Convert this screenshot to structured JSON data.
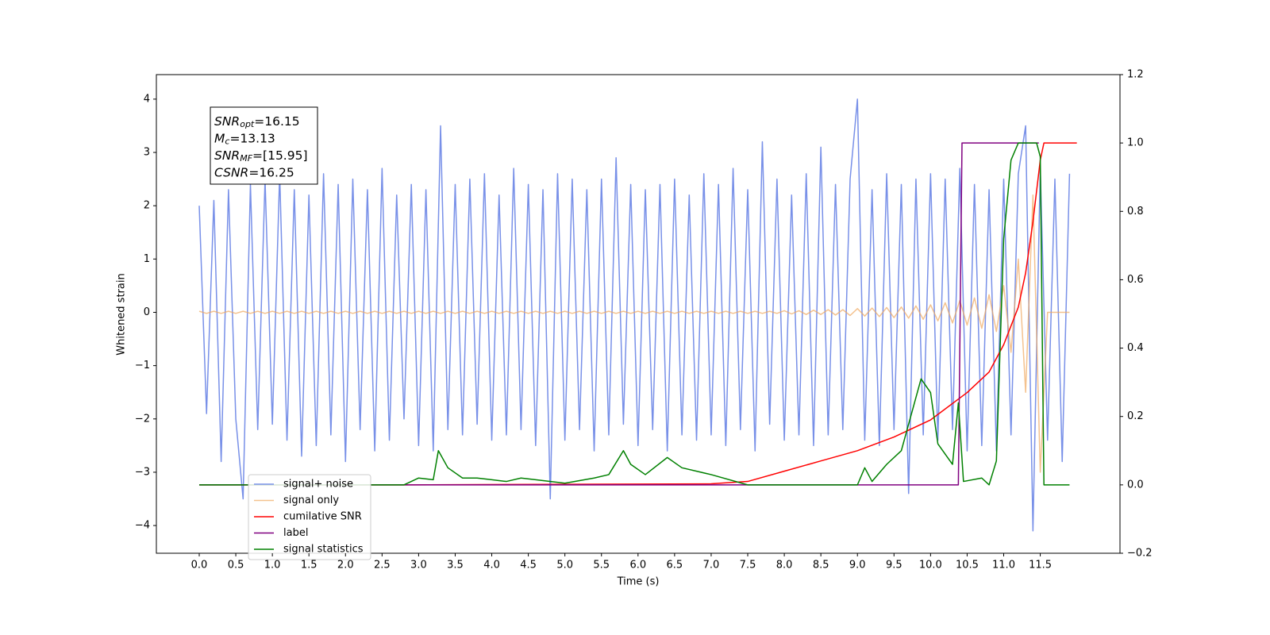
{
  "chart_data": {
    "type": "line",
    "xlabel": "Time (s)",
    "ylabel": "Whitened strain",
    "xlim": [
      -0.586,
      12.59
    ],
    "ylim": [
      -4.52,
      4.46
    ],
    "y2lim": [
      -0.2,
      1.2
    ],
    "xticks": [
      {
        "value": 0,
        "label": "0.0"
      },
      0.5,
      {
        "value": 1,
        "label": "1.0"
      },
      1.5,
      {
        "value": 2,
        "label": "2.0"
      },
      2.5,
      {
        "value": 3,
        "label": "3.0"
      },
      3.5,
      {
        "value": 4,
        "label": "4.0"
      },
      4.5,
      {
        "value": 5,
        "label": "5.0"
      },
      5.5,
      {
        "value": 6,
        "label": "6.0"
      },
      6.5,
      {
        "value": 7,
        "label": "7.0"
      },
      7.5,
      {
        "value": 8,
        "label": "8.0"
      },
      8.5,
      {
        "value": 9,
        "label": "9.0"
      },
      9.5,
      {
        "value": 10,
        "label": "10.0"
      },
      10.5,
      {
        "value": 11,
        "label": "11.0"
      },
      11.5
    ],
    "yticks": [
      {
        "value": -4,
        "label": "−4"
      },
      {
        "value": -3,
        "label": "−3"
      },
      {
        "value": -2,
        "label": "−2"
      },
      {
        "value": -1,
        "label": "−1"
      },
      0,
      1,
      2,
      3,
      4
    ],
    "y2ticks": [
      {
        "value": -0.2,
        "label": "−0.2"
      },
      {
        "value": 0,
        "label": "0.0"
      },
      0.2,
      0.4,
      0.6,
      0.8,
      {
        "value": 1,
        "label": "1.0"
      },
      1.2
    ],
    "annotation": [
      {
        "name": "SNR",
        "sub": "opt",
        "text": "=16.15"
      },
      {
        "name": "M",
        "sub": "c",
        "text": "=13.13"
      },
      {
        "name": "SNR",
        "sub": "MF",
        "text": "=[15.95]"
      },
      {
        "name": "CSNR",
        "sub": null,
        "text": "=16.25"
      }
    ],
    "series": [
      {
        "name": "signal+ noise",
        "color": "#7890e8",
        "x": [
          0.0,
          0.1,
          0.2,
          0.3,
          0.4,
          0.5,
          0.6,
          0.7,
          0.8,
          0.9,
          1.0,
          1.1,
          1.2,
          1.3,
          1.4,
          1.5,
          1.6,
          1.7,
          1.8,
          1.9,
          2.0,
          2.1,
          2.2,
          2.3,
          2.4,
          2.5,
          2.6,
          2.7,
          2.8,
          2.9,
          3.0,
          3.1,
          3.2,
          3.3,
          3.4,
          3.5,
          3.6,
          3.7,
          3.8,
          3.9,
          4.0,
          4.1,
          4.2,
          4.3,
          4.4,
          4.5,
          4.6,
          4.7,
          4.8,
          4.9,
          5.0,
          5.1,
          5.2,
          5.3,
          5.4,
          5.5,
          5.6,
          5.7,
          5.8,
          5.9,
          6.0,
          6.1,
          6.2,
          6.3,
          6.4,
          6.5,
          6.6,
          6.7,
          6.8,
          6.9,
          7.0,
          7.1,
          7.2,
          7.3,
          7.4,
          7.5,
          7.6,
          7.7,
          7.8,
          7.9,
          8.0,
          8.1,
          8.2,
          8.3,
          8.4,
          8.5,
          8.6,
          8.7,
          8.8,
          8.9,
          9.0,
          9.1,
          9.2,
          9.3,
          9.4,
          9.5,
          9.6,
          9.7,
          9.8,
          9.9,
          10.0,
          10.1,
          10.2,
          10.3,
          10.4,
          10.5,
          10.6,
          10.7,
          10.8,
          10.9,
          11.0,
          11.1,
          11.2,
          11.3,
          11.4,
          11.5,
          11.6,
          11.7,
          11.8,
          11.9
        ],
        "values": [
          2.0,
          -1.9,
          2.1,
          -2.8,
          2.3,
          -2.0,
          -3.5,
          2.4,
          -2.2,
          2.5,
          -2.1,
          2.6,
          -2.4,
          2.3,
          -2.7,
          2.2,
          -2.5,
          2.6,
          -2.3,
          2.4,
          -2.8,
          2.5,
          -2.2,
          2.3,
          -2.6,
          2.7,
          -2.4,
          2.2,
          -2.0,
          2.4,
          -2.5,
          2.3,
          -2.6,
          3.5,
          -2.2,
          2.4,
          -2.3,
          2.5,
          -2.1,
          2.6,
          -2.4,
          2.2,
          -2.3,
          2.7,
          -2.2,
          2.4,
          -2.5,
          2.3,
          -3.5,
          2.6,
          -2.4,
          2.5,
          -2.2,
          2.3,
          -2.6,
          2.5,
          -2.3,
          2.9,
          -2.1,
          2.4,
          -2.5,
          2.3,
          -2.2,
          2.4,
          -2.6,
          2.5,
          -2.3,
          2.2,
          -2.4,
          2.6,
          -2.3,
          2.4,
          -2.5,
          2.7,
          -2.2,
          2.3,
          -2.6,
          3.2,
          -2.1,
          2.5,
          -2.4,
          2.2,
          -2.3,
          2.6,
          -2.5,
          3.1,
          -2.3,
          2.4,
          -2.2,
          2.5,
          4.0,
          -2.4,
          2.3,
          -2.5,
          2.6,
          -2.2,
          2.4,
          -3.4,
          2.5,
          -2.3,
          2.6,
          -2.4,
          2.5,
          -2.2,
          2.7,
          -2.6,
          2.4,
          -2.5,
          2.3,
          -2.6,
          2.5,
          -2.3,
          2.6,
          3.5,
          -4.1,
          2.7,
          -2.4,
          2.5,
          -2.8,
          2.6
        ]
      },
      {
        "name": "signal only",
        "color": "#f0a860",
        "x": [
          0.0,
          0.1,
          0.2,
          0.3,
          0.4,
          0.5,
          0.6,
          0.7,
          0.8,
          0.9,
          1.0,
          1.1,
          1.2,
          1.3,
          1.4,
          1.5,
          1.6,
          1.7,
          1.8,
          1.9,
          2.0,
          2.1,
          2.2,
          2.3,
          2.4,
          2.5,
          2.6,
          2.7,
          2.8,
          2.9,
          3.0,
          3.1,
          3.2,
          3.3,
          3.4,
          3.5,
          3.6,
          3.7,
          3.8,
          3.9,
          4.0,
          4.1,
          4.2,
          4.3,
          4.4,
          4.5,
          4.6,
          4.7,
          4.8,
          4.9,
          5.0,
          5.1,
          5.2,
          5.3,
          5.4,
          5.5,
          5.6,
          5.7,
          5.8,
          5.9,
          6.0,
          6.1,
          6.2,
          6.3,
          6.4,
          6.5,
          6.6,
          6.7,
          6.8,
          6.9,
          7.0,
          7.1,
          7.2,
          7.3,
          7.4,
          7.5,
          7.6,
          7.7,
          7.8,
          7.9,
          8.0,
          8.1,
          8.2,
          8.3,
          8.4,
          8.5,
          8.6,
          8.7,
          8.8,
          8.9,
          9.0,
          9.1,
          9.2,
          9.3,
          9.4,
          9.5,
          9.6,
          9.7,
          9.8,
          9.9,
          10.0,
          10.1,
          10.2,
          10.3,
          10.4,
          10.5,
          10.6,
          10.7,
          10.8,
          10.9,
          11.0,
          11.1,
          11.2,
          11.3,
          11.4,
          11.5,
          11.6,
          11.7,
          11.8,
          11.9
        ],
        "values": [
          0.02,
          -0.02,
          0.02,
          -0.02,
          0.02,
          -0.02,
          0.02,
          -0.02,
          0.02,
          -0.02,
          0.02,
          -0.02,
          0.02,
          -0.02,
          0.02,
          -0.02,
          0.02,
          -0.02,
          0.02,
          -0.02,
          0.02,
          -0.02,
          0.02,
          -0.02,
          0.02,
          -0.02,
          0.02,
          -0.02,
          0.02,
          -0.02,
          0.02,
          -0.02,
          0.02,
          -0.02,
          0.02,
          -0.02,
          0.02,
          -0.02,
          0.02,
          -0.02,
          0.02,
          -0.02,
          0.02,
          -0.02,
          0.02,
          -0.02,
          0.02,
          -0.02,
          0.02,
          -0.02,
          0.02,
          -0.02,
          0.02,
          -0.02,
          0.02,
          -0.02,
          0.02,
          -0.02,
          0.02,
          -0.02,
          0.02,
          -0.02,
          0.02,
          -0.02,
          0.02,
          -0.02,
          0.02,
          -0.02,
          0.02,
          -0.02,
          0.02,
          -0.02,
          0.02,
          -0.02,
          0.02,
          -0.02,
          0.02,
          -0.02,
          0.02,
          -0.02,
          0.03,
          -0.03,
          0.03,
          -0.04,
          0.04,
          -0.04,
          0.05,
          -0.05,
          0.05,
          -0.06,
          0.07,
          -0.07,
          0.08,
          -0.08,
          0.09,
          -0.1,
          0.1,
          -0.11,
          0.12,
          -0.13,
          0.14,
          -0.16,
          0.18,
          -0.2,
          0.22,
          -0.24,
          0.27,
          -0.3,
          0.33,
          -0.36,
          0.5,
          -0.75,
          1.0,
          -1.5,
          2.2,
          -3.0,
          0,
          0,
          0,
          0
        ]
      },
      {
        "name": "cumilative SNR",
        "color": "#ff0000",
        "axis": "y2",
        "x": [
          0,
          2.8,
          7.0,
          7.5,
          8.0,
          8.5,
          9.0,
          9.5,
          10.0,
          10.5,
          10.8,
          11.0,
          11.2,
          11.3,
          11.4,
          11.5,
          11.55,
          12.0
        ],
        "values": [
          0,
          0,
          0.003,
          0.01,
          0.04,
          0.07,
          0.1,
          0.14,
          0.19,
          0.27,
          0.33,
          0.41,
          0.52,
          0.62,
          0.77,
          0.95,
          1.0,
          1.0
        ]
      },
      {
        "name": "label",
        "color": "#800080",
        "axis": "y2",
        "x": [
          0,
          10.38,
          10.43,
          11.48
        ],
        "values": [
          0,
          0,
          1,
          1
        ]
      },
      {
        "name": "signal statistics",
        "color": "#008000",
        "axis": "y2",
        "x": [
          0,
          2.8,
          2.85,
          3.0,
          3.2,
          3.27,
          3.4,
          3.6,
          3.8,
          4.0,
          4.2,
          4.4,
          4.6,
          5.0,
          5.4,
          5.6,
          5.8,
          5.9,
          6.1,
          6.4,
          6.6,
          7.0,
          7.5,
          9.0,
          9.1,
          9.2,
          9.4,
          9.6,
          9.87,
          10.0,
          10.1,
          10.3,
          10.38,
          10.45,
          10.7,
          10.8,
          10.9,
          11.0,
          11.1,
          11.2,
          11.45,
          11.5,
          11.55,
          11.9
        ],
        "values": [
          0,
          0,
          0.005,
          0.02,
          0.015,
          0.1,
          0.05,
          0.02,
          0.02,
          0.015,
          0.01,
          0.02,
          0.015,
          0.005,
          0.02,
          0.03,
          0.1,
          0.06,
          0.03,
          0.08,
          0.05,
          0.03,
          0,
          0,
          0.05,
          0.01,
          0.06,
          0.1,
          0.31,
          0.27,
          0.12,
          0.06,
          0.24,
          0.01,
          0.02,
          0,
          0.07,
          0.72,
          0.95,
          1.0,
          1.0,
          0.96,
          0,
          0
        ]
      }
    ]
  }
}
